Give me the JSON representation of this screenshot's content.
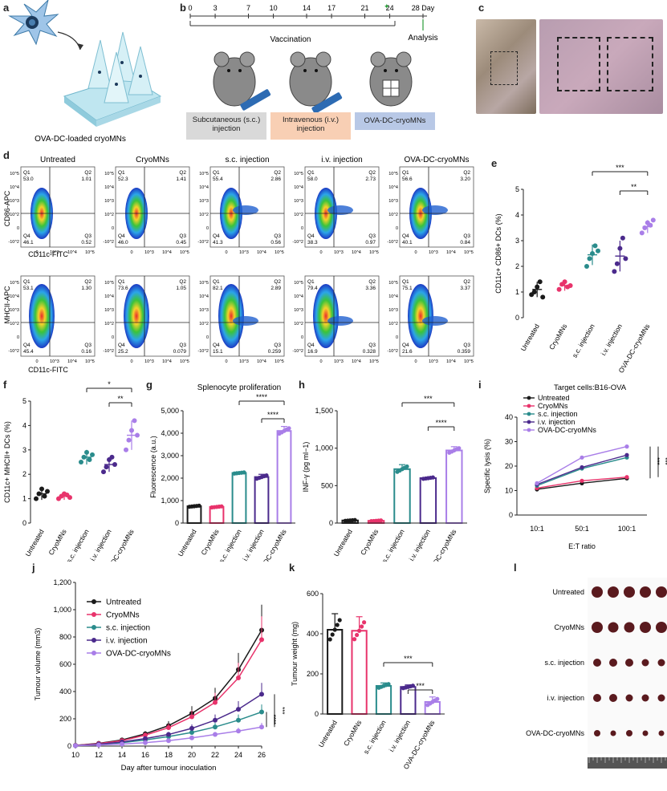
{
  "panel_labels": {
    "a": "a",
    "b": "b",
    "c": "c",
    "d": "d",
    "e": "e",
    "f": "f",
    "g": "g",
    "h": "h",
    "i": "i",
    "j": "j",
    "k": "k",
    "l": "l"
  },
  "colors": {
    "untreated": "#1a1a1a",
    "cryomns": "#e8336b",
    "sc": "#2a8c8c",
    "iv": "#4b2a8c",
    "ova": "#a97ee8"
  },
  "panel_a": {
    "caption": "OVA-DC-loaded cryoMNs"
  },
  "panel_b": {
    "days": [
      "0",
      "3",
      "7",
      "10",
      "14",
      "17",
      "21",
      "24",
      "28 Day"
    ],
    "vaccination_label": "Vaccination",
    "analysis_label": "Analysis",
    "groups": [
      "Subcutaneous (s.c.) injection",
      "Intravenous (i.v.) injection",
      "OVA-DC-cryoMNs"
    ]
  },
  "panel_d": {
    "columns": [
      "Untreated",
      "CryoMNs",
      "s.c. injection",
      "i.v. injection",
      "OVA-DC-cryoMNs"
    ],
    "row1_ylabel": "CD86-APC",
    "row2_ylabel": "MHCII-APC",
    "xlabel": "CD11c-FITC",
    "row1_q2": [
      "1.01",
      "1.41",
      "2.86",
      "2.73",
      "3.20"
    ],
    "row1_q1": [
      "53.0",
      "52.3",
      "55.4",
      "58.0",
      "56.6"
    ],
    "row1_q4": [
      "46.1",
      "46.0",
      "41.3",
      "38.3",
      "40.1"
    ],
    "row1_q3": [
      "0.52",
      "0.45",
      "0.56",
      "0.97",
      "0.84"
    ],
    "row2_q2": [
      "1.30",
      "1.05",
      "2.89",
      "3.36",
      "3.37"
    ],
    "row2_q1": [
      "53.1",
      "73.6",
      "82.1",
      "79.4",
      "75.1"
    ],
    "row2_q4": [
      "45.4",
      "25.2",
      "15.1",
      "16.9",
      "21.6"
    ],
    "row2_q3": [
      "0.16",
      "0.079",
      "0.259",
      "0.328",
      "0.359"
    ],
    "q_labels": [
      "Q1",
      "Q2",
      "Q3",
      "Q4"
    ],
    "ticks_y": [
      "10^5",
      "10^4",
      "10^3",
      "10^2",
      "0",
      "-10^2"
    ],
    "ticks_x": [
      "0",
      "10^3",
      "10^4",
      "10^5"
    ]
  },
  "chart_data": [
    {
      "panel": "e",
      "type": "scatter",
      "ylabel": "CD11c+ CD86+ DCs (%)",
      "ylim": [
        0,
        5
      ],
      "yticks": [
        "0",
        "1",
        "2",
        "3",
        "4",
        "5"
      ],
      "categories": [
        "Untreated",
        "CryoMNs",
        "s.c. injection",
        "i.v. injection",
        "OVA-DC-cryoMNs"
      ],
      "means": [
        1.1,
        1.25,
        2.45,
        2.4,
        3.55
      ],
      "sd": [
        0.3,
        0.2,
        0.4,
        0.6,
        0.25
      ],
      "points": [
        [
          0.9,
          1.0,
          1.2,
          1.4,
          0.8
        ],
        [
          1.1,
          1.3,
          1.4,
          1.2,
          1.25
        ],
        [
          2.0,
          2.3,
          2.5,
          2.8,
          2.6
        ],
        [
          1.8,
          2.1,
          2.7,
          3.1,
          2.3
        ],
        [
          3.3,
          3.5,
          3.7,
          3.6,
          3.8
        ]
      ],
      "significance": [
        {
          "from": 2,
          "to": 4,
          "label": "***"
        },
        {
          "from": 3,
          "to": 4,
          "label": "**"
        }
      ]
    },
    {
      "panel": "f",
      "type": "scatter",
      "ylabel": "CD11c+ MHCII+ DCs (%)",
      "ylim": [
        0,
        5
      ],
      "yticks": [
        "0",
        "1",
        "2",
        "3",
        "4",
        "5"
      ],
      "categories": [
        "Untreated",
        "CryoMNs",
        "s.c. injection",
        "i.v. injection",
        "OVA-DC-cryoMNs"
      ],
      "means": [
        1.2,
        1.1,
        2.7,
        2.4,
        3.6
      ],
      "sd": [
        0.25,
        0.15,
        0.3,
        0.3,
        0.6
      ],
      "points": [
        [
          1.0,
          1.2,
          1.4,
          1.1,
          1.3
        ],
        [
          1.0,
          1.1,
          1.2,
          1.15,
          1.05
        ],
        [
          2.5,
          2.7,
          2.9,
          2.6,
          2.8
        ],
        [
          2.1,
          2.3,
          2.6,
          2.7,
          2.4
        ],
        [
          3.0,
          3.4,
          3.8,
          4.2,
          3.6
        ]
      ],
      "significance": [
        {
          "from": 2,
          "to": 4,
          "label": "*"
        },
        {
          "from": 3,
          "to": 4,
          "label": "**"
        }
      ]
    },
    {
      "panel": "g",
      "type": "bar",
      "title": "Splenocyte proliferation",
      "ylabel": "Fluorescence (a.u.)",
      "ylim": [
        0,
        5000
      ],
      "yticks": [
        "0",
        "1,000",
        "2,000",
        "3,000",
        "4,000",
        "5,000"
      ],
      "categories": [
        "Untreated",
        "CryoMNs",
        "s.c. injection",
        "i.v. injection",
        "OVA-DC-cryoMNs"
      ],
      "values": [
        750,
        720,
        2230,
        2050,
        4100
      ],
      "sd": [
        40,
        40,
        40,
        120,
        200
      ],
      "significance": [
        {
          "from": 2,
          "to": 4,
          "label": "****"
        },
        {
          "from": 3,
          "to": 4,
          "label": "****"
        }
      ]
    },
    {
      "panel": "h",
      "type": "bar",
      "ylabel": "INF-γ (pg ml−1)",
      "ylim": [
        0,
        1500
      ],
      "yticks": [
        "0",
        "500",
        "1,000",
        "1,500"
      ],
      "categories": [
        "Untreated",
        "CryoMNs",
        "s.c. injection",
        "i.v. injection",
        "OVA-DC-cryoMNs"
      ],
      "values": [
        35,
        30,
        720,
        600,
        970
      ],
      "sd": [
        8,
        8,
        60,
        15,
        50
      ],
      "significance": [
        {
          "from": 2,
          "to": 4,
          "label": "***"
        },
        {
          "from": 3,
          "to": 4,
          "label": "****"
        }
      ]
    },
    {
      "panel": "i",
      "type": "line",
      "title": "Target cells:B16-OVA",
      "ylabel": "Specific lysis (%)",
      "xlabel": "E:T ratio",
      "ylim": [
        0,
        40
      ],
      "yticks": [
        "0",
        "10",
        "20",
        "30",
        "40"
      ],
      "categories": [
        "10:1",
        "50:1",
        "100:1"
      ],
      "series": [
        {
          "name": "Untreated",
          "values": [
            10.5,
            13,
            15
          ]
        },
        {
          "name": "CryoMNs",
          "values": [
            11,
            14,
            15.5
          ]
        },
        {
          "name": "s.c. injection",
          "values": [
            12,
            19,
            23.5
          ]
        },
        {
          "name": "i.v. injection",
          "values": [
            12.5,
            19.5,
            24.5
          ]
        },
        {
          "name": "OVA-DC-cryoMNs",
          "values": [
            13,
            23.5,
            28
          ]
        }
      ],
      "significance": [
        "***",
        "***"
      ]
    },
    {
      "panel": "j",
      "type": "line",
      "ylabel": "Tumour volume (mm3)",
      "xlabel": "Day after tumour inoculation",
      "ylim": [
        0,
        1200
      ],
      "yticks": [
        "0",
        "200",
        "400",
        "600",
        "800",
        "1,000",
        "1,200"
      ],
      "x": [
        10,
        12,
        14,
        16,
        18,
        20,
        22,
        24,
        26
      ],
      "xticks": [
        "10",
        "12",
        "14",
        "16",
        "18",
        "20",
        "22",
        "24",
        "26"
      ],
      "series": [
        {
          "name": "Untreated",
          "values": [
            5,
            20,
            45,
            90,
            150,
            240,
            350,
            560,
            850
          ]
        },
        {
          "name": "CryoMNs",
          "values": [
            5,
            18,
            40,
            80,
            135,
            215,
            320,
            500,
            780
          ]
        },
        {
          "name": "s.c. injection",
          "values": [
            4,
            12,
            25,
            45,
            70,
            100,
            140,
            190,
            250
          ]
        },
        {
          "name": "i.v. injection",
          "values": [
            4,
            14,
            30,
            55,
            85,
            130,
            190,
            270,
            380
          ]
        },
        {
          "name": "OVA-DC-cryoMNs",
          "values": [
            3,
            8,
            15,
            25,
            40,
            60,
            85,
            110,
            140
          ]
        }
      ],
      "significance": [
        "****",
        "***"
      ]
    },
    {
      "panel": "k",
      "type": "bar",
      "ylabel": "Tumour weight (mg)",
      "ylim": [
        0,
        600
      ],
      "yticks": [
        "0",
        "200",
        "400",
        "600"
      ],
      "categories": [
        "Untreated",
        "CryoMNs",
        "s.c. injection",
        "i.v. injection",
        "OVA-DC-cryoMNs"
      ],
      "values": [
        420,
        415,
        140,
        135,
        60
      ],
      "sd": [
        80,
        70,
        15,
        10,
        25
      ],
      "significance": [
        {
          "from": 2,
          "to": 4,
          "label": "***"
        },
        {
          "from": 3,
          "to": 4,
          "label": "***"
        }
      ]
    }
  ],
  "panel_l": {
    "rows": [
      "Untreated",
      "CryoMNs",
      "s.c. injection",
      "i.v. injection",
      "OVA-DC-cryoMNs"
    ],
    "counts": [
      5,
      5,
      5,
      5,
      5
    ]
  }
}
